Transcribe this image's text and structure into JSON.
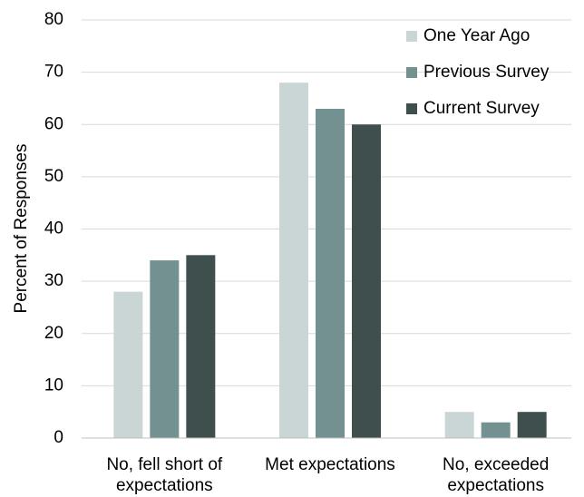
{
  "chart_data": {
    "type": "bar",
    "categories": [
      "No, fell short of expectations",
      "Met expectations",
      "No, exceeded expectations"
    ],
    "series": [
      {
        "name": "One Year Ago",
        "color": "#c9d6d5",
        "values": [
          28,
          68,
          5
        ]
      },
      {
        "name": "Previous Survey",
        "color": "#739190",
        "values": [
          34,
          63,
          3
        ]
      },
      {
        "name": "Current Survey",
        "color": "#3f4f4e",
        "values": [
          35,
          60,
          5
        ]
      }
    ],
    "ylabel": "Percent of Responses",
    "ylim": [
      0,
      80
    ],
    "yticks": [
      0,
      10,
      20,
      30,
      40,
      50,
      60,
      70,
      80
    ],
    "grid": true,
    "legend": "upper right"
  }
}
